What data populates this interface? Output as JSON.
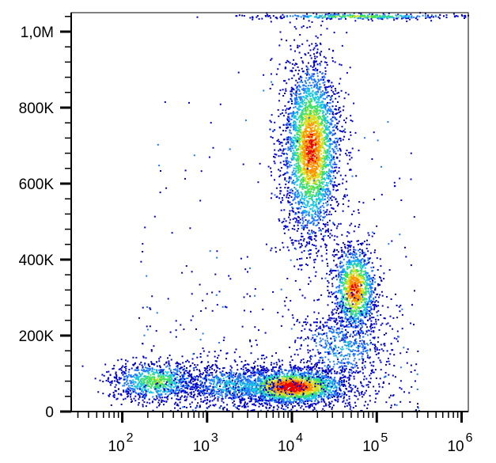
{
  "chart_data": {
    "type": "scatter",
    "subtype": "flow-cytometry density dot plot",
    "title": "",
    "xlabel": "",
    "ylabel": "",
    "x_scale": "log",
    "xlim": [
      25,
      1200000
    ],
    "ylim": [
      0,
      1050000
    ],
    "grid": false,
    "legend": "none",
    "x_ticks": [
      {
        "value": 100,
        "base": "10",
        "exp": "2"
      },
      {
        "value": 1000,
        "base": "10",
        "exp": "3"
      },
      {
        "value": 10000,
        "base": "10",
        "exp": "4"
      },
      {
        "value": 100000,
        "base": "10",
        "exp": "5"
      },
      {
        "value": 1000000,
        "base": "10",
        "exp": "6"
      }
    ],
    "y_ticks": [
      {
        "value": 0,
        "label": "0"
      },
      {
        "value": 200000,
        "label": "200K"
      },
      {
        "value": 400000,
        "label": "400K"
      },
      {
        "value": 600000,
        "label": "600K"
      },
      {
        "value": 800000,
        "label": "800K"
      },
      {
        "value": 1000000,
        "label": "1,0M"
      }
    ],
    "density_colors": [
      "#0000c8",
      "#1e78ff",
      "#18c8e0",
      "#40e060",
      "#d8e020",
      "#ff9000",
      "#e80000"
    ],
    "populations": [
      {
        "x_center": 250,
        "y_center": 80000,
        "x_spread_log10": 0.28,
        "y_spread": 28000,
        "count": 900,
        "peak_density": 0.55
      },
      {
        "x_center": 10000,
        "y_center": 65000,
        "x_spread_log10": 0.35,
        "y_spread": 25000,
        "count": 2200,
        "peak_density": 1.0
      },
      {
        "x_center": 2000,
        "y_center": 70000,
        "x_spread_log10": 0.35,
        "y_spread": 30000,
        "count": 700,
        "peak_density": 0.35
      },
      {
        "x_center": 17000,
        "y_center": 690000,
        "x_spread_log10": 0.17,
        "y_spread": 120000,
        "count": 3000,
        "peak_density": 0.9
      },
      {
        "x_center": 55000,
        "y_center": 320000,
        "x_spread_log10": 0.13,
        "y_spread": 60000,
        "count": 1200,
        "peak_density": 0.9
      },
      {
        "x_center": 40000,
        "y_center": 170000,
        "x_spread_log10": 0.3,
        "y_spread": 55000,
        "count": 600,
        "peak_density": 0.3
      },
      {
        "x_center": 60000,
        "y_center": 1040000,
        "x_spread_log10": 0.6,
        "y_spread": 4000,
        "count": 350,
        "peak_density": 0.6
      }
    ]
  }
}
